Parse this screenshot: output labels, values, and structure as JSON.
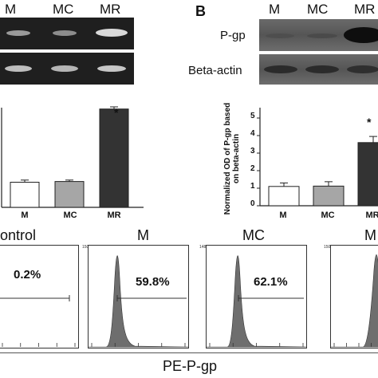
{
  "panel_a": {
    "lanes": [
      "M",
      "MC",
      "MR"
    ],
    "bar_chart": {
      "categories": [
        "M",
        "MC",
        "MR"
      ],
      "values": [
        0.35,
        0.36,
        1.37
      ],
      "significance": [
        "",
        "",
        "*"
      ],
      "colors": [
        "#ffffff",
        "#a6a6a6",
        "#333333"
      ]
    }
  },
  "panel_b": {
    "letter": "B",
    "lanes": [
      "M",
      "MC",
      "MR"
    ],
    "row_labels": [
      "P-gp",
      "Beta-actin"
    ],
    "bar_chart": {
      "ylabel": "Normalized OD of P-gp based on beta-actin",
      "yticks": [
        "0",
        "1",
        "2",
        "3",
        "4",
        "5"
      ],
      "categories": [
        "M",
        "MC",
        "MR"
      ],
      "values": [
        1.1,
        1.12,
        3.6
      ],
      "significance": [
        "",
        "",
        "*"
      ],
      "colors": [
        "#ffffff",
        "#a6a6a6",
        "#333333"
      ]
    }
  },
  "flow": {
    "titles": [
      "ontrol",
      "M",
      "MC",
      "M"
    ],
    "percents": [
      "0.2%",
      "59.8%",
      "62.1%"
    ],
    "y_max_labels": [
      "150",
      "148",
      "150"
    ],
    "xlabel": "PE-P-gp"
  },
  "chart_data": [
    {
      "type": "bar",
      "categories": [
        "M",
        "MC",
        "MR"
      ],
      "values": [
        0.35,
        0.36,
        1.37
      ],
      "error": [
        0.03,
        0.02,
        0.03
      ]
    },
    {
      "type": "bar",
      "categories": [
        "M",
        "MC",
        "MR"
      ],
      "values": [
        1.1,
        1.12,
        3.6
      ],
      "error": [
        0.2,
        0.25,
        0.35
      ],
      "ylabel": "Normalized OD of P-gp based on beta-actin",
      "ylim": [
        0,
        5
      ]
    }
  ]
}
